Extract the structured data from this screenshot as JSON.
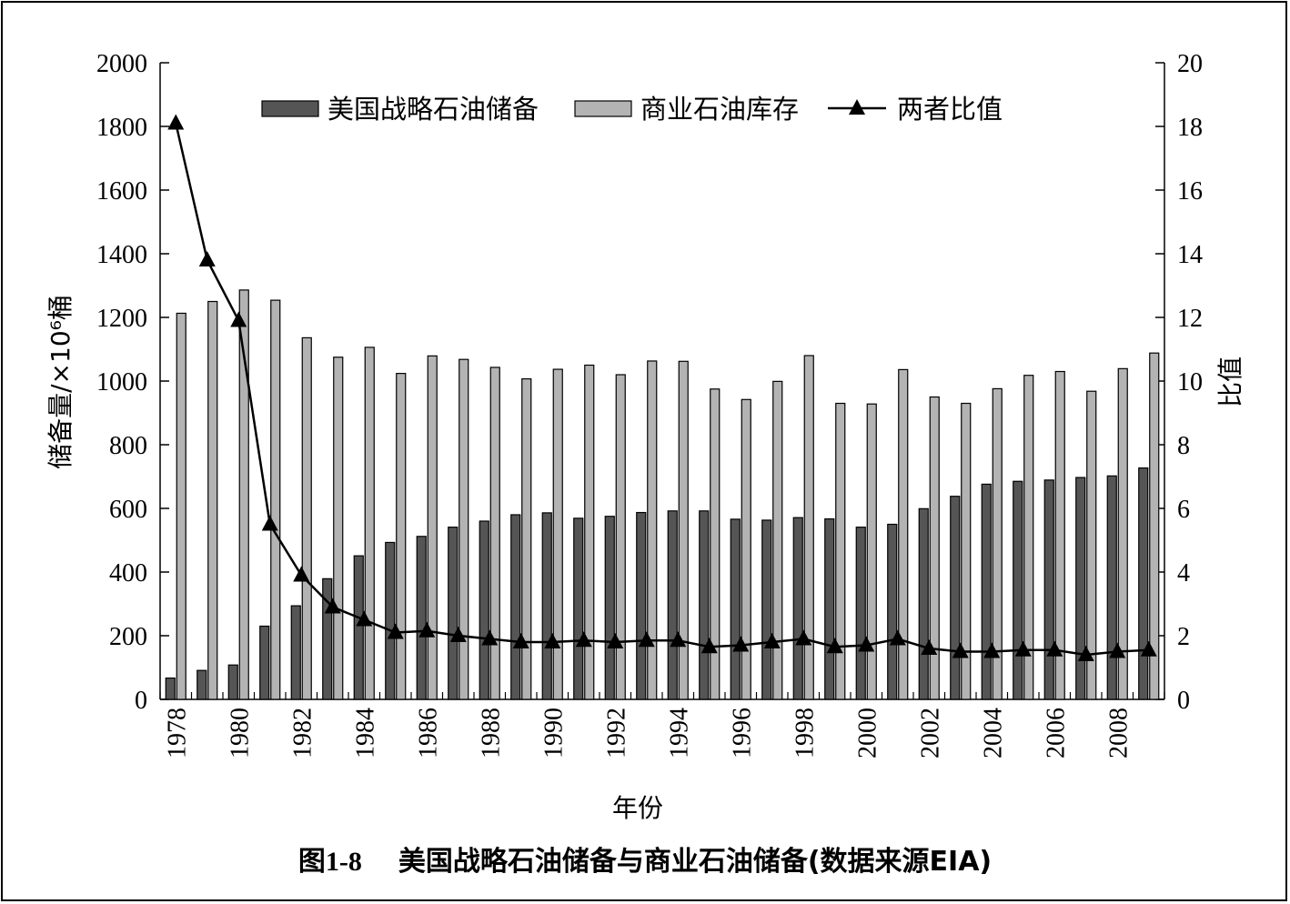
{
  "chart_data": {
    "type": "bar",
    "categories": [
      "1978",
      "1979",
      "1980",
      "1981",
      "1982",
      "1983",
      "1984",
      "1985",
      "1986",
      "1987",
      "1988",
      "1989",
      "1990",
      "1991",
      "1992",
      "1993",
      "1994",
      "1995",
      "1996",
      "1997",
      "1998",
      "1999",
      "2000",
      "2001",
      "2002",
      "2003",
      "2004",
      "2005",
      "2006",
      "2007",
      "2008",
      "2009"
    ],
    "x_tick_labels": [
      "1978",
      "1980",
      "1982",
      "1984",
      "1986",
      "1988",
      "1990",
      "1992",
      "1994",
      "1996",
      "1998",
      "2000",
      "2002",
      "2004",
      "2006",
      "2008"
    ],
    "series": [
      {
        "name": "美国战略石油储备",
        "kind": "bar",
        "axis": "left",
        "color": "#555555",
        "values": [
          67,
          91,
          108,
          230,
          294,
          379,
          451,
          493,
          512,
          541,
          560,
          580,
          586,
          569,
          575,
          587,
          592,
          592,
          566,
          563,
          571,
          567,
          541,
          550,
          599,
          638,
          676,
          685,
          689,
          697,
          702,
          727
        ]
      },
      {
        "name": "商业石油库存",
        "kind": "bar",
        "axis": "left",
        "color": "#b3b3b3",
        "values": [
          1213,
          1250,
          1286,
          1254,
          1136,
          1075,
          1106,
          1024,
          1079,
          1068,
          1043,
          1007,
          1037,
          1050,
          1020,
          1063,
          1062,
          975,
          942,
          999,
          1080,
          930,
          928,
          1036,
          950,
          930,
          976,
          1018,
          1030,
          968,
          1039,
          1088
        ]
      },
      {
        "name": "两者比值",
        "kind": "line",
        "axis": "right",
        "color": "#000000",
        "values": [
          18.1,
          13.8,
          11.9,
          5.5,
          3.9,
          2.9,
          2.5,
          2.1,
          2.15,
          2.0,
          1.9,
          1.8,
          1.8,
          1.85,
          1.8,
          1.85,
          1.85,
          1.65,
          1.7,
          1.8,
          1.9,
          1.65,
          1.7,
          1.9,
          1.6,
          1.5,
          1.5,
          1.55,
          1.55,
          1.4,
          1.5,
          1.55
        ]
      }
    ],
    "y_left": {
      "label": "储备量/×10⁶桶",
      "ylim": [
        0,
        2000
      ],
      "ticks": [
        "0",
        "200",
        "400",
        "600",
        "800",
        "1000",
        "1200",
        "1400",
        "1600",
        "1800",
        "2000"
      ]
    },
    "y_right": {
      "label": "比值",
      "ylim": [
        0,
        20
      ],
      "ticks": [
        "0",
        "2",
        "4",
        "6",
        "8",
        "10",
        "12",
        "14",
        "16",
        "18",
        "20"
      ]
    },
    "xlabel": "年份",
    "legend_position": "top",
    "grid": false
  },
  "caption": {
    "number": "图1-8",
    "text": "美国战略石油储备与商业石油储备(数据来源EIA)"
  }
}
